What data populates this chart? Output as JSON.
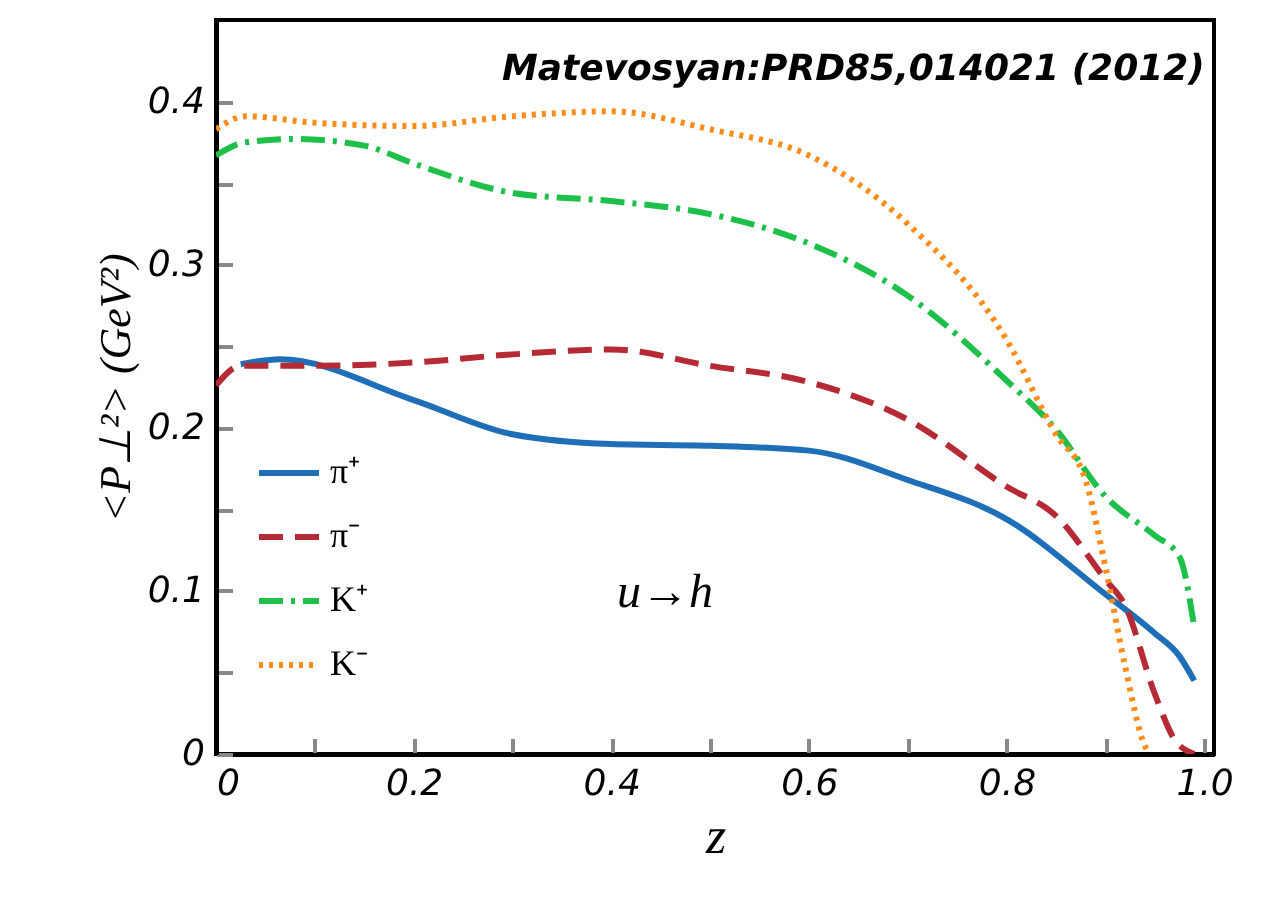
{
  "chart_data": {
    "type": "line",
    "title": "Matevosyan:PRD85,014021 (2012)",
    "xlabel": "z",
    "ylabel": "<P⊥²> (GeV²)",
    "annotations": [
      "u→h"
    ],
    "xlim": [
      0,
      1.01
    ],
    "ylim": [
      0,
      0.45
    ],
    "xticks": [
      0,
      {
        "value": 0.1,
        "label": null
      },
      0.2,
      {
        "value": 0.3,
        "label": null
      },
      0.4,
      {
        "value": 0.5,
        "label": null
      },
      0.6,
      {
        "value": 0.7,
        "label": null
      },
      0.8,
      {
        "value": 0.9,
        "label": null
      },
      {
        "value": 1,
        "label": "1.0"
      }
    ],
    "yticks": [
      0,
      {
        "value": 0.05,
        "label": null
      },
      0.1,
      {
        "value": 0.15,
        "label": null
      },
      0.2,
      {
        "value": 0.25,
        "label": null
      },
      0.3,
      {
        "value": 0.35,
        "label": null
      },
      0.4
    ],
    "grid": false,
    "legend": "bottom left",
    "series": [
      {
        "name": "π⁺",
        "color": "#1f6fb8",
        "line_style": "solid",
        "x": [
          0.025,
          0.065,
          0.2,
          0.3,
          0.4,
          0.5,
          0.6,
          0.7,
          0.8,
          0.9,
          0.95,
          0.975,
          0.99
        ],
        "values": [
          0.239,
          0.242,
          0.217,
          0.196,
          0.19,
          0.189,
          0.186,
          0.168,
          0.144,
          0.098,
          0.074,
          0.06,
          0.045
        ]
      },
      {
        "name": "π⁻",
        "color": "#b52a35",
        "line_style": "dashed",
        "x": [
          0,
          0.025,
          0.1,
          0.2,
          0.3,
          0.4,
          0.5,
          0.6,
          0.7,
          0.8,
          0.85,
          0.9,
          0.92,
          0.95,
          0.97,
          0.99
        ],
        "values": [
          0.226,
          0.238,
          0.238,
          0.24,
          0.245,
          0.248,
          0.238,
          0.228,
          0.205,
          0.164,
          0.146,
          0.107,
          0.091,
          0.037,
          0.009,
          0
        ]
      },
      {
        "name": "K⁺",
        "color": "#1ec04a",
        "line_style": "dashdot",
        "x": [
          0,
          0.03,
          0.08,
          0.15,
          0.2,
          0.3,
          0.4,
          0.5,
          0.6,
          0.7,
          0.8,
          0.85,
          0.9,
          0.95,
          0.975,
          0.99
        ],
        "values": [
          0.367,
          0.375,
          0.377,
          0.373,
          0.362,
          0.344,
          0.339,
          0.331,
          0.313,
          0.281,
          0.229,
          0.199,
          0.158,
          0.134,
          0.121,
          0.078
        ]
      },
      {
        "name": "K⁻",
        "color": "#ff8c1a",
        "line_style": "dotted",
        "x": [
          0,
          0.03,
          0.1,
          0.2,
          0.3,
          0.4,
          0.5,
          0.6,
          0.7,
          0.8,
          0.85,
          0.88,
          0.9,
          0.92,
          0.94,
          0.945
        ],
        "values": [
          0.383,
          0.391,
          0.387,
          0.385,
          0.391,
          0.394,
          0.383,
          0.367,
          0.325,
          0.254,
          0.196,
          0.168,
          0.115,
          0.054,
          0.005,
          0
        ]
      }
    ]
  }
}
